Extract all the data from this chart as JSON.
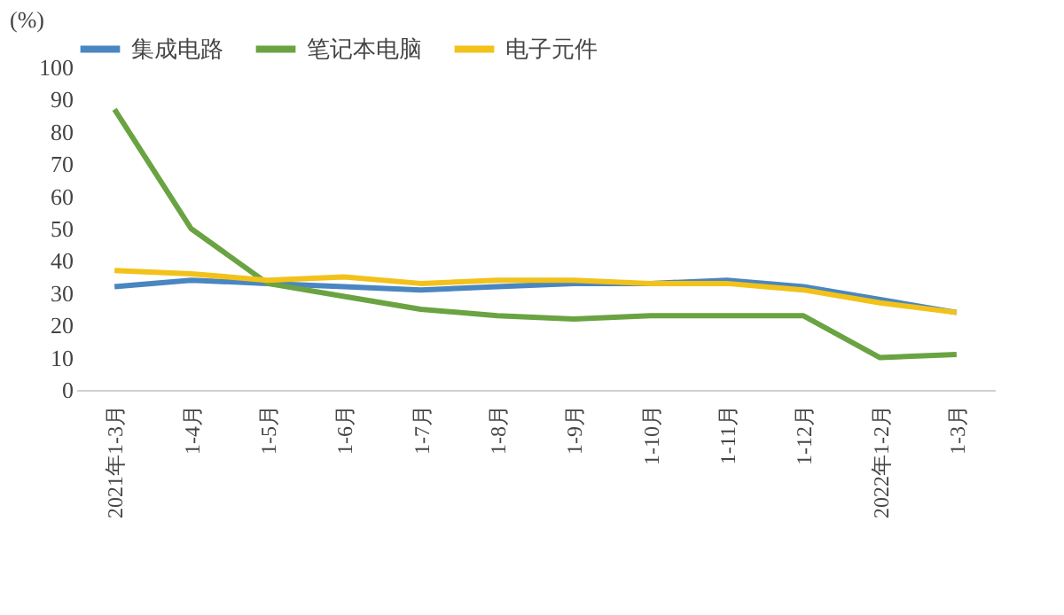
{
  "chart_data": {
    "type": "line",
    "ylabel": "(%)",
    "categories": [
      "2021年1-3月",
      "1-4月",
      "1-5月",
      "1-6月",
      "1-7月",
      "1-8月",
      "1-9月",
      "1-10月",
      "1-11月",
      "1-12月",
      "2022年1-2月",
      "1-3月"
    ],
    "series": [
      {
        "name": "集成电路",
        "color": "#4a86c0",
        "values": [
          32,
          34,
          33,
          32,
          31,
          32,
          33,
          33,
          34,
          32,
          28,
          24
        ]
      },
      {
        "name": "笔记本电脑",
        "color": "#6aa342",
        "values": [
          87,
          50,
          33,
          29,
          25,
          23,
          22,
          23,
          23,
          23,
          10,
          11
        ]
      },
      {
        "name": "电子元件",
        "color": "#f2c21a",
        "values": [
          37,
          36,
          34,
          35,
          33,
          34,
          34,
          33,
          33,
          31,
          27,
          24
        ]
      }
    ],
    "ylim": [
      0,
      100
    ],
    "yticks": [
      0,
      10,
      20,
      30,
      40,
      50,
      60,
      70,
      80,
      90,
      100
    ],
    "grid": false,
    "legend": "top",
    "marker": "none",
    "line_style": "solid"
  }
}
